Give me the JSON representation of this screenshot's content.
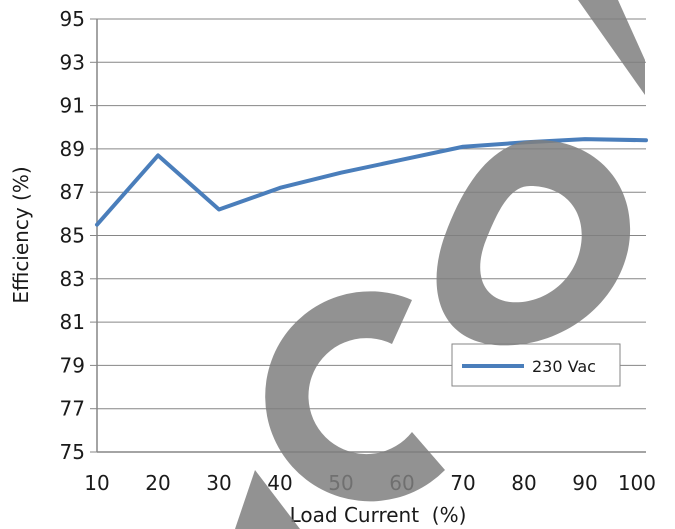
{
  "chart_data": {
    "type": "line",
    "xlabel": "Load Current  (%)",
    "ylabel": "Efficiency (%)",
    "x": [
      10,
      20,
      30,
      40,
      50,
      60,
      70,
      80,
      90,
      100
    ],
    "xlim": [
      10,
      100
    ],
    "xticks": [
      "10",
      "20",
      "30",
      "40",
      "50",
      "60",
      "70",
      "80",
      "90",
      "100"
    ],
    "ylim": [
      75,
      95
    ],
    "yticks": [
      "75",
      "77",
      "79",
      "81",
      "83",
      "85",
      "87",
      "89",
      "91",
      "93",
      "95"
    ],
    "grid": true,
    "legend_position": "lower-right",
    "series": [
      {
        "name": "230 Vac",
        "color": "#4a7ebb",
        "values": [
          85.5,
          88.7,
          86.2,
          87.2,
          87.9,
          88.5,
          89.1,
          89.3,
          89.45,
          89.4
        ]
      }
    ]
  },
  "watermark": {
    "text": "ISCOM",
    "color": "#7f7f7f"
  }
}
